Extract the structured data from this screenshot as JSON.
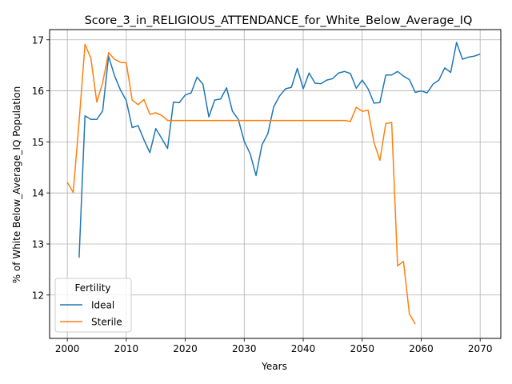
{
  "chart_data": {
    "type": "line",
    "title": "Score_3_in_RELIGIOUS_ATTENDANCE_for_White_Below_Average_IQ",
    "xlabel": "Years",
    "ylabel": "% of White Below_Average_IQ Population",
    "xlim": [
      1997,
      2073.5
    ],
    "ylim": [
      11.15,
      17.2
    ],
    "x_ticks": [
      2000,
      2010,
      2020,
      2030,
      2040,
      2050,
      2060,
      2070
    ],
    "y_ticks": [
      12,
      13,
      14,
      15,
      16,
      17
    ],
    "grid": true,
    "legend": {
      "title": "Fertility",
      "position": "lower-left"
    },
    "series": [
      {
        "name": "Ideal",
        "color": "#1f77b4",
        "x": [
          2002,
          2003,
          2004,
          2005,
          2006,
          2007,
          2008,
          2009,
          2010,
          2011,
          2012,
          2013,
          2014,
          2015,
          2016,
          2017,
          2018,
          2019,
          2020,
          2021,
          2022,
          2023,
          2024,
          2025,
          2026,
          2027,
          2028,
          2029,
          2030,
          2031,
          2032,
          2033,
          2034,
          2035,
          2036,
          2037,
          2038,
          2039,
          2040,
          2041,
          2042,
          2043,
          2044,
          2045,
          2046,
          2047,
          2048,
          2049,
          2050,
          2051,
          2052,
          2053,
          2054,
          2055,
          2056,
          2057,
          2058,
          2059,
          2060,
          2061,
          2062,
          2063,
          2064,
          2065,
          2066,
          2067,
          2068,
          2069,
          2070
        ],
        "values": [
          12.73,
          15.51,
          15.44,
          15.44,
          15.61,
          16.68,
          16.3,
          16.02,
          15.81,
          15.28,
          15.32,
          15.04,
          14.79,
          15.26,
          15.07,
          14.87,
          15.78,
          15.77,
          15.92,
          15.96,
          16.27,
          16.13,
          15.49,
          15.82,
          15.84,
          16.06,
          15.6,
          15.44,
          15.01,
          14.77,
          14.34,
          14.94,
          15.16,
          15.69,
          15.9,
          16.04,
          16.07,
          16.44,
          16.04,
          16.35,
          16.15,
          16.14,
          16.21,
          16.24,
          16.35,
          16.38,
          16.34,
          16.05,
          16.21,
          16.04,
          15.76,
          15.77,
          16.31,
          16.31,
          16.38,
          16.29,
          16.22,
          15.97,
          16.0,
          15.96,
          16.13,
          16.21,
          16.45,
          16.36,
          16.95,
          16.62,
          16.66,
          16.68,
          16.72
        ]
      },
      {
        "name": "Sterile",
        "color": "#ff7f0e",
        "x": [
          2000,
          2001,
          2002,
          2003,
          2004,
          2005,
          2006,
          2007,
          2008,
          2009,
          2010,
          2011,
          2012,
          2013,
          2014,
          2015,
          2016,
          2017,
          2018,
          2019,
          2020,
          2021,
          2022,
          2023,
          2024,
          2025,
          2026,
          2027,
          2028,
          2029,
          2030,
          2031,
          2032,
          2033,
          2034,
          2035,
          2036,
          2037,
          2038,
          2039,
          2040,
          2041,
          2042,
          2043,
          2044,
          2045,
          2046,
          2047,
          2048,
          2049,
          2050,
          2051,
          2052,
          2053,
          2054,
          2055,
          2056,
          2057,
          2058,
          2059
        ],
        "values": [
          14.21,
          14.01,
          15.39,
          16.91,
          16.64,
          15.78,
          16.16,
          16.75,
          16.62,
          16.56,
          16.55,
          15.82,
          15.73,
          15.83,
          15.54,
          15.57,
          15.52,
          15.42,
          15.42,
          15.42,
          15.42,
          15.42,
          15.42,
          15.42,
          15.42,
          15.42,
          15.42,
          15.42,
          15.42,
          15.42,
          15.42,
          15.42,
          15.42,
          15.42,
          15.42,
          15.42,
          15.42,
          15.42,
          15.42,
          15.42,
          15.42,
          15.42,
          15.42,
          15.42,
          15.42,
          15.42,
          15.42,
          15.42,
          15.4,
          15.68,
          15.6,
          15.62,
          14.99,
          14.64,
          15.36,
          15.38,
          12.57,
          12.66,
          11.63,
          11.43
        ]
      }
    ]
  }
}
